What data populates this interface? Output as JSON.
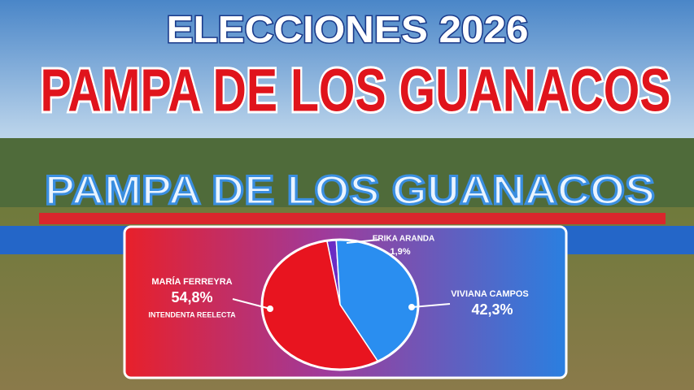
{
  "chart_data": {
    "type": "pie",
    "title": "ELECCIONES 2026",
    "subtitle": "PAMPA DE LOS GUANACOS",
    "background_sign": "PAMPA DE LOS GUANACOS",
    "categories": [
      "ERIKA ARANDA",
      "VIVIANA CAMPOS",
      "MARÍA FERREYRA"
    ],
    "values": [
      1.9,
      42.3,
      54.8
    ],
    "value_labels": [
      "1,9%",
      "42,3%",
      "54,8%"
    ],
    "colors": [
      "#6a2cc4",
      "#2a8ef0",
      "#e8141f"
    ],
    "annotation": "INTENDENTA REELECTA"
  }
}
